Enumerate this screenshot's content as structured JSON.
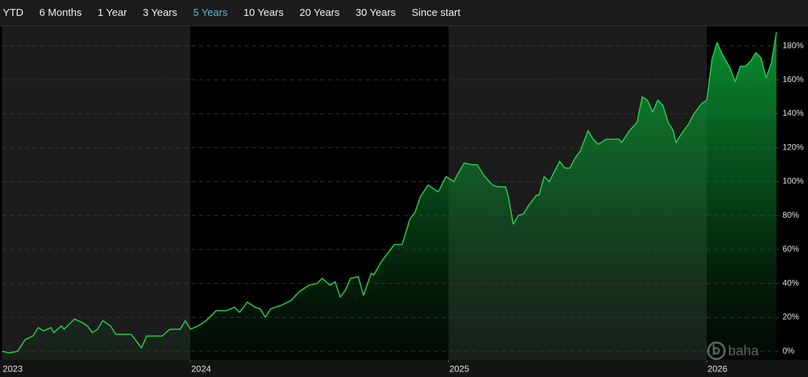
{
  "ranges": [
    "YTD",
    "6 Months",
    "1 Year",
    "3 Years",
    "5 Years",
    "10 Years",
    "20 Years",
    "30 Years",
    "Since start"
  ],
  "active_range": 4,
  "watermark": "baha",
  "chart_data": {
    "type": "area",
    "color": "#2ad04a",
    "grid": true,
    "x": [
      2023.27,
      2023.3,
      2023.33,
      2023.36,
      2023.39,
      2023.41,
      2023.43,
      2023.46,
      2023.47,
      2023.5,
      2023.51,
      2023.53,
      2023.55,
      2023.58,
      2023.6,
      2023.62,
      2023.64,
      2023.66,
      2023.69,
      2023.71,
      2023.77,
      2023.79,
      2023.81,
      2023.83,
      2023.86,
      2023.89,
      2023.92,
      2023.96,
      2023.98,
      2024.0,
      2024.03,
      2024.06,
      2024.1,
      2024.14,
      2024.17,
      2024.19,
      2024.22,
      2024.25,
      2024.27,
      2024.29,
      2024.31,
      2024.35,
      2024.39,
      2024.42,
      2024.46,
      2024.49,
      2024.51,
      2024.54,
      2024.56,
      2024.58,
      2024.6,
      2024.62,
      2024.65,
      2024.67,
      2024.7,
      2024.71,
      2024.74,
      2024.76,
      2024.79,
      2024.82,
      2024.85,
      2024.87,
      2024.89,
      2024.92,
      2024.95,
      2024.96,
      2024.99,
      2025.02,
      2025.03,
      2025.06,
      2025.09,
      2025.11,
      2025.14,
      2025.17,
      2025.19,
      2025.22,
      2025.23,
      2025.25,
      2025.27,
      2025.29,
      2025.31,
      2025.34,
      2025.35,
      2025.37,
      2025.39,
      2025.43,
      2025.45,
      2025.47,
      2025.49,
      2025.51,
      2025.52,
      2025.54,
      2025.56,
      2025.58,
      2025.61,
      2025.66,
      2025.67,
      2025.7,
      2025.73,
      2025.75,
      2025.77,
      2025.79,
      2025.81,
      2025.83,
      2025.85,
      2025.87,
      2025.88,
      2025.91,
      2025.93,
      2025.95,
      2025.98,
      2026.0,
      2026.02,
      2026.04,
      2026.06,
      2026.09,
      2026.11,
      2026.13,
      2026.15,
      2026.17,
      2026.19,
      2026.21,
      2026.23,
      2026.25,
      2026.27
    ],
    "values": [
      0,
      -1,
      0,
      7,
      9,
      14,
      12,
      14,
      11,
      15,
      13,
      16,
      19,
      17,
      15,
      11,
      13,
      18,
      15,
      10,
      10,
      6,
      2,
      9,
      9,
      9,
      13,
      13,
      18,
      13,
      15,
      18,
      24,
      24,
      26,
      23,
      29,
      26,
      25,
      20,
      25,
      27,
      30,
      35,
      39,
      40,
      43,
      39,
      41,
      32,
      36,
      43,
      44,
      33,
      46,
      45,
      53,
      57,
      63,
      63,
      78,
      82,
      91,
      98,
      95,
      94,
      103,
      100,
      103,
      111,
      110,
      110,
      103,
      98,
      97,
      97,
      92,
      75,
      80,
      81,
      86,
      92,
      92,
      103,
      100,
      112,
      108,
      108,
      114,
      118,
      122,
      130,
      125,
      122,
      125,
      125,
      123,
      130,
      135,
      150,
      148,
      141,
      148,
      145,
      135,
      130,
      123,
      130,
      134,
      140,
      146,
      148,
      172,
      182,
      175,
      167,
      159,
      168,
      168,
      171,
      176,
      173,
      161,
      170,
      188
    ],
    "xlim": [
      2023.27,
      2026.28
    ],
    "xticks": [
      2023,
      2024,
      2025,
      2026
    ],
    "ylim": [
      -5,
      190
    ],
    "yticks": [
      {
        "value": 0,
        "label": "0%"
      },
      {
        "value": 20,
        "label": "20%"
      },
      {
        "value": 40,
        "label": "40%"
      },
      {
        "value": 60,
        "label": "60%"
      },
      {
        "value": 80,
        "label": "80%"
      },
      {
        "value": 100,
        "label": "100%"
      },
      {
        "value": 120,
        "label": "120%"
      },
      {
        "value": 140,
        "label": "140%"
      },
      {
        "value": 160,
        "label": "160%"
      },
      {
        "value": 180,
        "label": "180%"
      }
    ]
  }
}
